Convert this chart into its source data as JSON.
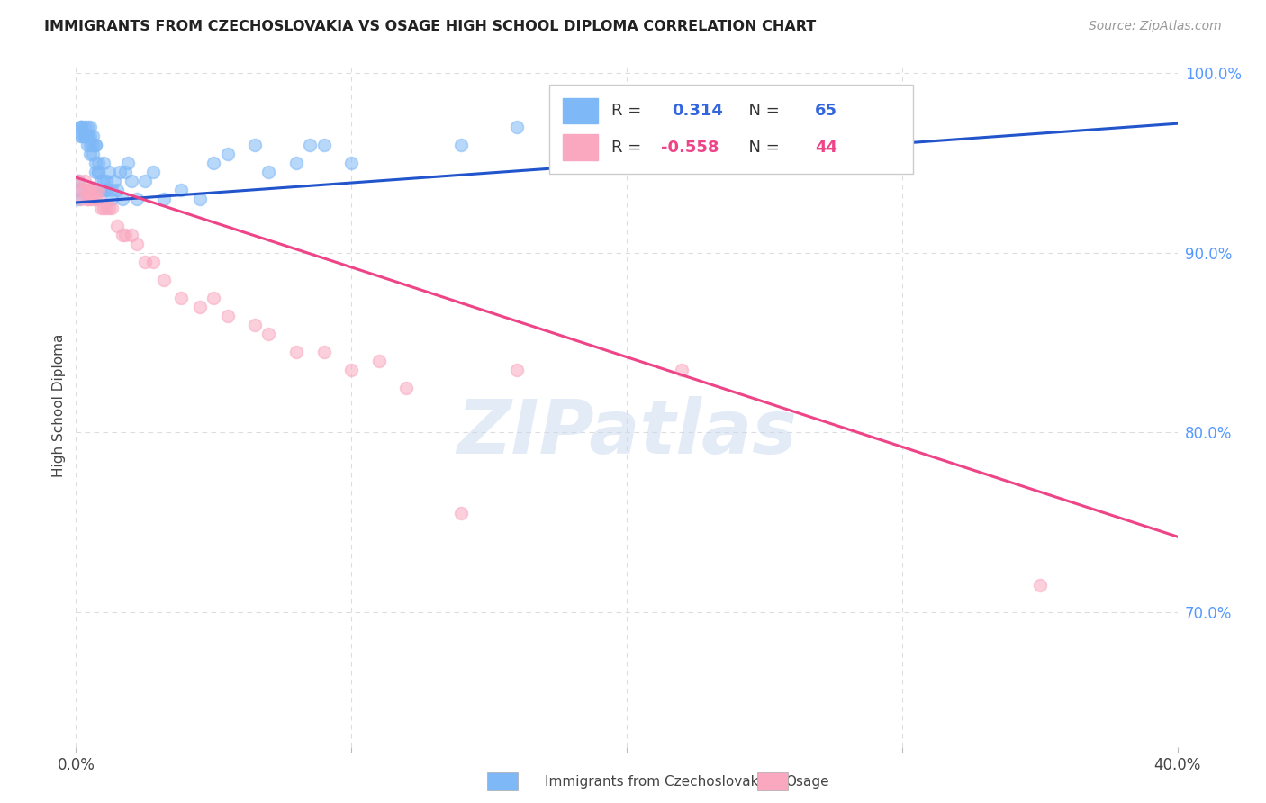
{
  "title": "IMMIGRANTS FROM CZECHOSLOVAKIA VS OSAGE HIGH SCHOOL DIPLOMA CORRELATION CHART",
  "source": "Source: ZipAtlas.com",
  "ylabel": "High School Diploma",
  "legend_label_blue": "Immigrants from Czechoslovakia",
  "legend_label_pink": "Osage",
  "blue_color": "#7eb8f7",
  "pink_color": "#f9a8c0",
  "blue_line_color": "#2255cc",
  "pink_line_color": "#ee4488",
  "watermark": "ZIPatlas",
  "blue_scatter_x": [
    0.001,
    0.001,
    0.001,
    0.002,
    0.002,
    0.002,
    0.002,
    0.002,
    0.003,
    0.003,
    0.003,
    0.003,
    0.003,
    0.004,
    0.004,
    0.004,
    0.004,
    0.005,
    0.005,
    0.005,
    0.005,
    0.006,
    0.006,
    0.006,
    0.007,
    0.007,
    0.007,
    0.007,
    0.008,
    0.008,
    0.008,
    0.009,
    0.009,
    0.01,
    0.01,
    0.01,
    0.011,
    0.011,
    0.012,
    0.013,
    0.013,
    0.014,
    0.015,
    0.016,
    0.017,
    0.018,
    0.019,
    0.02,
    0.022,
    0.025,
    0.028,
    0.032,
    0.038,
    0.045,
    0.05,
    0.055,
    0.065,
    0.07,
    0.08,
    0.085,
    0.09,
    0.1,
    0.14,
    0.16,
    0.2
  ],
  "blue_scatter_y": [
    0.94,
    0.93,
    0.935,
    0.97,
    0.965,
    0.97,
    0.97,
    0.965,
    0.965,
    0.965,
    0.965,
    0.97,
    0.965,
    0.97,
    0.965,
    0.965,
    0.96,
    0.955,
    0.96,
    0.965,
    0.97,
    0.96,
    0.955,
    0.965,
    0.945,
    0.95,
    0.96,
    0.96,
    0.945,
    0.95,
    0.945,
    0.94,
    0.935,
    0.94,
    0.935,
    0.95,
    0.935,
    0.94,
    0.945,
    0.935,
    0.93,
    0.94,
    0.935,
    0.945,
    0.93,
    0.945,
    0.95,
    0.94,
    0.93,
    0.94,
    0.945,
    0.93,
    0.935,
    0.93,
    0.95,
    0.955,
    0.96,
    0.945,
    0.95,
    0.96,
    0.96,
    0.95,
    0.96,
    0.97,
    0.97
  ],
  "pink_scatter_x": [
    0.001,
    0.002,
    0.002,
    0.003,
    0.003,
    0.004,
    0.004,
    0.004,
    0.005,
    0.005,
    0.006,
    0.006,
    0.007,
    0.007,
    0.008,
    0.008,
    0.009,
    0.01,
    0.011,
    0.012,
    0.013,
    0.015,
    0.017,
    0.018,
    0.02,
    0.022,
    0.025,
    0.028,
    0.032,
    0.038,
    0.045,
    0.05,
    0.055,
    0.065,
    0.07,
    0.08,
    0.09,
    0.1,
    0.11,
    0.12,
    0.14,
    0.16,
    0.22,
    0.35
  ],
  "pink_scatter_y": [
    0.94,
    0.935,
    0.93,
    0.935,
    0.94,
    0.935,
    0.93,
    0.93,
    0.935,
    0.93,
    0.935,
    0.93,
    0.935,
    0.93,
    0.93,
    0.935,
    0.925,
    0.925,
    0.925,
    0.925,
    0.925,
    0.915,
    0.91,
    0.91,
    0.91,
    0.905,
    0.895,
    0.895,
    0.885,
    0.875,
    0.87,
    0.875,
    0.865,
    0.86,
    0.855,
    0.845,
    0.845,
    0.835,
    0.84,
    0.825,
    0.755,
    0.835,
    0.835,
    0.715
  ],
  "blue_line_x": [
    0.0,
    0.4
  ],
  "blue_line_y": [
    0.928,
    0.972
  ],
  "pink_line_x": [
    0.0,
    0.4
  ],
  "pink_line_y": [
    0.942,
    0.742
  ],
  "xlim": [
    0.0,
    0.4
  ],
  "ylim": [
    0.625,
    1.005
  ],
  "right_yticks": [
    1.0,
    0.9,
    0.8,
    0.7
  ],
  "right_yticklabels": [
    "100.0%",
    "90.0%",
    "80.0%",
    "70.0%"
  ],
  "xtick_positions": [
    0.0,
    0.1,
    0.2,
    0.3,
    0.4
  ],
  "xtick_labels": [
    "0.0%",
    "",
    "",
    "",
    "40.0%"
  ],
  "background_color": "#ffffff",
  "grid_color": "#dddddd",
  "blue_marker_size": 100,
  "pink_marker_size": 100
}
